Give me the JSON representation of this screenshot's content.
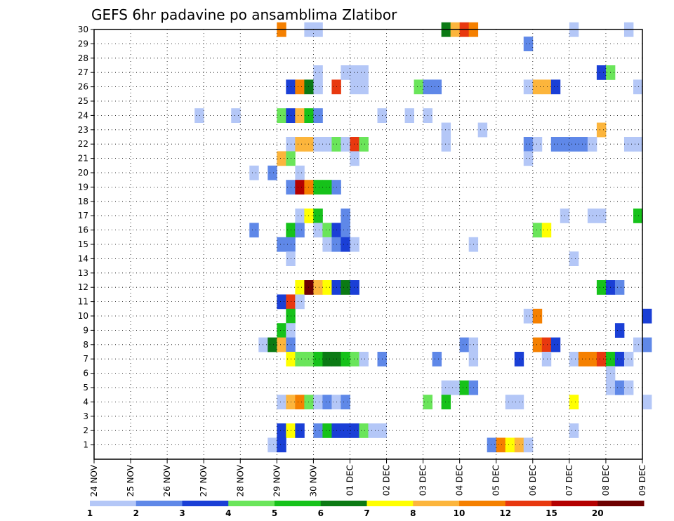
{
  "chart_data": {
    "type": "heatmap",
    "title": "GEFS 6hr padavine po ansamblima Zlatibor",
    "x_tick_labels": [
      "24 NOV",
      "25 NOV",
      "26 NOV",
      "27 NOV",
      "28 NOV",
      "29 NOV",
      "30 NOV",
      "01 DEC",
      "02 DEC",
      "03 DEC",
      "04 DEC",
      "05 DEC",
      "06 DEC",
      "07 DEC",
      "08 DEC",
      "09 DEC"
    ],
    "y_tick_labels": [
      "1",
      "2",
      "3",
      "4",
      "5",
      "6",
      "7",
      "8",
      "9",
      "10",
      "11",
      "12",
      "13",
      "14",
      "15",
      "16",
      "17",
      "18",
      "19",
      "20",
      "21",
      "22",
      "23",
      "24",
      "25",
      "26",
      "27",
      "28",
      "29",
      "30"
    ],
    "grid": true,
    "colorbar": {
      "colors": [
        "#b4c7f7",
        "#5f88e8",
        "#1a3fd6",
        "#6ae55a",
        "#16c21a",
        "#0b7a14",
        "#ffff00",
        "#fcb53c",
        "#f58000",
        "#e8380f",
        "#b40000",
        "#6e0000"
      ],
      "labels": [
        "1",
        "2",
        "3",
        "4",
        "5",
        "6",
        "7",
        "8",
        "10",
        "12",
        "15",
        "20"
      ]
    },
    "cells": [
      {
        "m": 30,
        "t": "29 NOV 00",
        "c": 9
      },
      {
        "m": 30,
        "t": "29 NOV 18",
        "c": 1
      },
      {
        "m": 30,
        "t": "30 NOV 00",
        "c": 1
      },
      {
        "m": 30,
        "t": "03 DEC 12",
        "c": 6
      },
      {
        "m": 30,
        "t": "03 DEC 18",
        "c": 8
      },
      {
        "m": 30,
        "t": "04 DEC 00",
        "c": 10
      },
      {
        "m": 30,
        "t": "04 DEC 06",
        "c": 9
      },
      {
        "m": 30,
        "t": "07 DEC 00",
        "c": 1
      },
      {
        "m": 30,
        "t": "08 DEC 12",
        "c": 1
      },
      {
        "m": 29,
        "t": "05 DEC 18",
        "c": 2
      },
      {
        "m": 27,
        "t": "30 NOV 00",
        "c": 1
      },
      {
        "m": 27,
        "t": "30 NOV 18",
        "c": 1
      },
      {
        "m": 27,
        "t": "01 DEC 00",
        "c": 1
      },
      {
        "m": 27,
        "t": "01 DEC 06",
        "c": 1
      },
      {
        "m": 27,
        "t": "07 DEC 18",
        "c": 3
      },
      {
        "m": 27,
        "t": "08 DEC 00",
        "c": 4
      },
      {
        "m": 26,
        "t": "29 NOV 06",
        "c": 3
      },
      {
        "m": 26,
        "t": "29 NOV 12",
        "c": 9
      },
      {
        "m": 26,
        "t": "29 NOV 18",
        "c": 6
      },
      {
        "m": 26,
        "t": "30 NOV 00",
        "c": 1
      },
      {
        "m": 26,
        "t": "30 NOV 12",
        "c": 10
      },
      {
        "m": 26,
        "t": "01 DEC 00",
        "c": 1
      },
      {
        "m": 26,
        "t": "01 DEC 06",
        "c": 1
      },
      {
        "m": 26,
        "t": "02 DEC 18",
        "c": 4
      },
      {
        "m": 26,
        "t": "03 DEC 00",
        "c": 2
      },
      {
        "m": 26,
        "t": "03 DEC 06",
        "c": 2
      },
      {
        "m": 26,
        "t": "05 DEC 18",
        "c": 1
      },
      {
        "m": 26,
        "t": "06 DEC 00",
        "c": 8
      },
      {
        "m": 26,
        "t": "06 DEC 06",
        "c": 8
      },
      {
        "m": 26,
        "t": "06 DEC 12",
        "c": 3
      },
      {
        "m": 26,
        "t": "08 DEC 18",
        "c": 1
      },
      {
        "m": 24,
        "t": "26 NOV 18",
        "c": 1
      },
      {
        "m": 24,
        "t": "27 NOV 18",
        "c": 1
      },
      {
        "m": 24,
        "t": "29 NOV 00",
        "c": 4
      },
      {
        "m": 24,
        "t": "29 NOV 06",
        "c": 3
      },
      {
        "m": 24,
        "t": "29 NOV 12",
        "c": 8
      },
      {
        "m": 24,
        "t": "29 NOV 18",
        "c": 5
      },
      {
        "m": 24,
        "t": "30 NOV 00",
        "c": 2
      },
      {
        "m": 24,
        "t": "01 DEC 18",
        "c": 1
      },
      {
        "m": 24,
        "t": "02 DEC 12",
        "c": 1
      },
      {
        "m": 24,
        "t": "03 DEC 00",
        "c": 1
      },
      {
        "m": 23,
        "t": "03 DEC 12",
        "c": 1
      },
      {
        "m": 23,
        "t": "04 DEC 12",
        "c": 1
      },
      {
        "m": 23,
        "t": "07 DEC 18",
        "c": 8
      },
      {
        "m": 22,
        "t": "29 NOV 06",
        "c": 1
      },
      {
        "m": 22,
        "t": "29 NOV 12",
        "c": 8
      },
      {
        "m": 22,
        "t": "29 NOV 18",
        "c": 8
      },
      {
        "m": 22,
        "t": "30 NOV 00",
        "c": 1
      },
      {
        "m": 22,
        "t": "30 NOV 06",
        "c": 1
      },
      {
        "m": 22,
        "t": "30 NOV 12",
        "c": 4
      },
      {
        "m": 22,
        "t": "30 NOV 18",
        "c": 1
      },
      {
        "m": 22,
        "t": "01 DEC 00",
        "c": 10
      },
      {
        "m": 22,
        "t": "01 DEC 06",
        "c": 4
      },
      {
        "m": 22,
        "t": "03 DEC 12",
        "c": 1
      },
      {
        "m": 22,
        "t": "05 DEC 18",
        "c": 2
      },
      {
        "m": 22,
        "t": "06 DEC 00",
        "c": 1
      },
      {
        "m": 22,
        "t": "06 DEC 12",
        "c": 2
      },
      {
        "m": 22,
        "t": "06 DEC 18",
        "c": 2
      },
      {
        "m": 22,
        "t": "07 DEC 00",
        "c": 2
      },
      {
        "m": 22,
        "t": "07 DEC 06",
        "c": 2
      },
      {
        "m": 22,
        "t": "07 DEC 12",
        "c": 1
      },
      {
        "m": 22,
        "t": "08 DEC 12",
        "c": 1
      },
      {
        "m": 22,
        "t": "08 DEC 18",
        "c": 1
      },
      {
        "m": 21,
        "t": "29 NOV 00",
        "c": 8
      },
      {
        "m": 21,
        "t": "29 NOV 06",
        "c": 4
      },
      {
        "m": 21,
        "t": "01 DEC 00",
        "c": 1
      },
      {
        "m": 21,
        "t": "05 DEC 18",
        "c": 1
      },
      {
        "m": 20,
        "t": "28 NOV 06",
        "c": 1
      },
      {
        "m": 20,
        "t": "28 NOV 18",
        "c": 2
      },
      {
        "m": 20,
        "t": "29 NOV 12",
        "c": 1
      },
      {
        "m": 19,
        "t": "29 NOV 06",
        "c": 2
      },
      {
        "m": 19,
        "t": "29 NOV 12",
        "c": 11
      },
      {
        "m": 19,
        "t": "29 NOV 18",
        "c": 9
      },
      {
        "m": 19,
        "t": "30 NOV 00",
        "c": 5
      },
      {
        "m": 19,
        "t": "30 NOV 06",
        "c": 5
      },
      {
        "m": 19,
        "t": "30 NOV 12",
        "c": 2
      },
      {
        "m": 17,
        "t": "29 NOV 12",
        "c": 1
      },
      {
        "m": 17,
        "t": "29 NOV 18",
        "c": 7
      },
      {
        "m": 17,
        "t": "30 NOV 00",
        "c": 5
      },
      {
        "m": 17,
        "t": "30 NOV 18",
        "c": 2
      },
      {
        "m": 17,
        "t": "06 DEC 18",
        "c": 1
      },
      {
        "m": 17,
        "t": "07 DEC 12",
        "c": 1
      },
      {
        "m": 17,
        "t": "07 DEC 18",
        "c": 1
      },
      {
        "m": 17,
        "t": "08 DEC 18",
        "c": 5
      },
      {
        "m": 16,
        "t": "28 NOV 06",
        "c": 2
      },
      {
        "m": 16,
        "t": "29 NOV 06",
        "c": 5
      },
      {
        "m": 16,
        "t": "29 NOV 12",
        "c": 2
      },
      {
        "m": 16,
        "t": "30 NOV 00",
        "c": 1
      },
      {
        "m": 16,
        "t": "30 NOV 06",
        "c": 4
      },
      {
        "m": 16,
        "t": "30 NOV 12",
        "c": 3
      },
      {
        "m": 16,
        "t": "30 NOV 18",
        "c": 2
      },
      {
        "m": 16,
        "t": "06 DEC 00",
        "c": 4
      },
      {
        "m": 16,
        "t": "06 DEC 06",
        "c": 7
      },
      {
        "m": 15,
        "t": "29 NOV 00",
        "c": 2
      },
      {
        "m": 15,
        "t": "29 NOV 06",
        "c": 2
      },
      {
        "m": 15,
        "t": "30 NOV 06",
        "c": 1
      },
      {
        "m": 15,
        "t": "30 NOV 12",
        "c": 2
      },
      {
        "m": 15,
        "t": "30 NOV 18",
        "c": 3
      },
      {
        "m": 15,
        "t": "01 DEC 00",
        "c": 1
      },
      {
        "m": 15,
        "t": "04 DEC 06",
        "c": 1
      },
      {
        "m": 14,
        "t": "29 NOV 06",
        "c": 1
      },
      {
        "m": 14,
        "t": "07 DEC 00",
        "c": 1
      },
      {
        "m": 12,
        "t": "29 NOV 12",
        "c": 7
      },
      {
        "m": 12,
        "t": "29 NOV 18",
        "c": 12
      },
      {
        "m": 12,
        "t": "30 NOV 00",
        "c": 8
      },
      {
        "m": 12,
        "t": "30 NOV 06",
        "c": 7
      },
      {
        "m": 12,
        "t": "30 NOV 12",
        "c": 3
      },
      {
        "m": 12,
        "t": "30 NOV 18",
        "c": 6
      },
      {
        "m": 12,
        "t": "01 DEC 00",
        "c": 3
      },
      {
        "m": 12,
        "t": "07 DEC 18",
        "c": 5
      },
      {
        "m": 12,
        "t": "08 DEC 00",
        "c": 3
      },
      {
        "m": 12,
        "t": "08 DEC 06",
        "c": 2
      },
      {
        "m": 11,
        "t": "29 NOV 00",
        "c": 3
      },
      {
        "m": 11,
        "t": "29 NOV 06",
        "c": 10
      },
      {
        "m": 11,
        "t": "29 NOV 12",
        "c": 1
      },
      {
        "m": 10,
        "t": "29 NOV 06",
        "c": 5
      },
      {
        "m": 10,
        "t": "05 DEC 18",
        "c": 1
      },
      {
        "m": 10,
        "t": "06 DEC 00",
        "c": 9
      },
      {
        "m": 10,
        "t": "09 DEC 00",
        "c": 3
      },
      {
        "m": 9,
        "t": "29 NOV 00",
        "c": 5
      },
      {
        "m": 9,
        "t": "29 NOV 06",
        "c": 1
      },
      {
        "m": 9,
        "t": "08 DEC 06",
        "c": 3
      },
      {
        "m": 8,
        "t": "28 NOV 12",
        "c": 1
      },
      {
        "m": 8,
        "t": "28 NOV 18",
        "c": 6
      },
      {
        "m": 8,
        "t": "29 NOV 00",
        "c": 8
      },
      {
        "m": 8,
        "t": "29 NOV 06",
        "c": 2
      },
      {
        "m": 8,
        "t": "04 DEC 00",
        "c": 2
      },
      {
        "m": 8,
        "t": "04 DEC 06",
        "c": 1
      },
      {
        "m": 8,
        "t": "06 DEC 00",
        "c": 9
      },
      {
        "m": 8,
        "t": "06 DEC 06",
        "c": 10
      },
      {
        "m": 8,
        "t": "06 DEC 12",
        "c": 3
      },
      {
        "m": 8,
        "t": "08 DEC 18",
        "c": 1
      },
      {
        "m": 8,
        "t": "09 DEC 00",
        "c": 2
      },
      {
        "m": 7,
        "t": "29 NOV 06",
        "c": 7
      },
      {
        "m": 7,
        "t": "29 NOV 12",
        "c": 4
      },
      {
        "m": 7,
        "t": "29 NOV 18",
        "c": 4
      },
      {
        "m": 7,
        "t": "30 NOV 00",
        "c": 5
      },
      {
        "m": 7,
        "t": "30 NOV 06",
        "c": 6
      },
      {
        "m": 7,
        "t": "30 NOV 12",
        "c": 6
      },
      {
        "m": 7,
        "t": "30 NOV 18",
        "c": 5
      },
      {
        "m": 7,
        "t": "01 DEC 00",
        "c": 4
      },
      {
        "m": 7,
        "t": "01 DEC 06",
        "c": 1
      },
      {
        "m": 7,
        "t": "01 DEC 18",
        "c": 2
      },
      {
        "m": 7,
        "t": "03 DEC 06",
        "c": 2
      },
      {
        "m": 7,
        "t": "04 DEC 06",
        "c": 1
      },
      {
        "m": 7,
        "t": "05 DEC 12",
        "c": 3
      },
      {
        "m": 7,
        "t": "06 DEC 06",
        "c": 1
      },
      {
        "m": 7,
        "t": "07 DEC 00",
        "c": 1
      },
      {
        "m": 7,
        "t": "07 DEC 06",
        "c": 9
      },
      {
        "m": 7,
        "t": "07 DEC 12",
        "c": 9
      },
      {
        "m": 7,
        "t": "07 DEC 18",
        "c": 10
      },
      {
        "m": 7,
        "t": "08 DEC 00",
        "c": 5
      },
      {
        "m": 7,
        "t": "08 DEC 06",
        "c": 3
      },
      {
        "m": 7,
        "t": "08 DEC 12",
        "c": 1
      },
      {
        "m": 6,
        "t": "08 DEC 00",
        "c": 1
      },
      {
        "m": 5,
        "t": "03 DEC 12",
        "c": 1
      },
      {
        "m": 5,
        "t": "03 DEC 18",
        "c": 1
      },
      {
        "m": 5,
        "t": "04 DEC 00",
        "c": 5
      },
      {
        "m": 5,
        "t": "04 DEC 06",
        "c": 2
      },
      {
        "m": 5,
        "t": "08 DEC 00",
        "c": 1
      },
      {
        "m": 5,
        "t": "08 DEC 06",
        "c": 2
      },
      {
        "m": 5,
        "t": "08 DEC 12",
        "c": 1
      },
      {
        "m": 4,
        "t": "29 NOV 00",
        "c": 1
      },
      {
        "m": 4,
        "t": "29 NOV 06",
        "c": 8
      },
      {
        "m": 4,
        "t": "29 NOV 12",
        "c": 9
      },
      {
        "m": 4,
        "t": "29 NOV 18",
        "c": 4
      },
      {
        "m": 4,
        "t": "30 NOV 00",
        "c": 1
      },
      {
        "m": 4,
        "t": "30 NOV 06",
        "c": 2
      },
      {
        "m": 4,
        "t": "30 NOV 12",
        "c": 1
      },
      {
        "m": 4,
        "t": "30 NOV 18",
        "c": 2
      },
      {
        "m": 4,
        "t": "03 DEC 00",
        "c": 4
      },
      {
        "m": 4,
        "t": "03 DEC 12",
        "c": 5
      },
      {
        "m": 4,
        "t": "05 DEC 06",
        "c": 1
      },
      {
        "m": 4,
        "t": "05 DEC 12",
        "c": 1
      },
      {
        "m": 4,
        "t": "07 DEC 00",
        "c": 7
      },
      {
        "m": 4,
        "t": "09 DEC 00",
        "c": 1
      },
      {
        "m": 2,
        "t": "29 NOV 00",
        "c": 3
      },
      {
        "m": 2,
        "t": "29 NOV 06",
        "c": 7
      },
      {
        "m": 2,
        "t": "29 NOV 12",
        "c": 3
      },
      {
        "m": 2,
        "t": "30 NOV 00",
        "c": 2
      },
      {
        "m": 2,
        "t": "30 NOV 06",
        "c": 5
      },
      {
        "m": 2,
        "t": "30 NOV 12",
        "c": 3
      },
      {
        "m": 2,
        "t": "30 NOV 18",
        "c": 3
      },
      {
        "m": 2,
        "t": "01 DEC 00",
        "c": 3
      },
      {
        "m": 2,
        "t": "01 DEC 06",
        "c": 4
      },
      {
        "m": 2,
        "t": "01 DEC 12",
        "c": 1
      },
      {
        "m": 2,
        "t": "01 DEC 18",
        "c": 1
      },
      {
        "m": 2,
        "t": "07 DEC 00",
        "c": 1
      },
      {
        "m": 1,
        "t": "28 NOV 18",
        "c": 1
      },
      {
        "m": 1,
        "t": "29 NOV 00",
        "c": 3
      },
      {
        "m": 1,
        "t": "04 DEC 18",
        "c": 2
      },
      {
        "m": 1,
        "t": "05 DEC 00",
        "c": 9
      },
      {
        "m": 1,
        "t": "05 DEC 06",
        "c": 7
      },
      {
        "m": 1,
        "t": "05 DEC 12",
        "c": 8
      },
      {
        "m": 1,
        "t": "05 DEC 18",
        "c": 1
      }
    ]
  }
}
